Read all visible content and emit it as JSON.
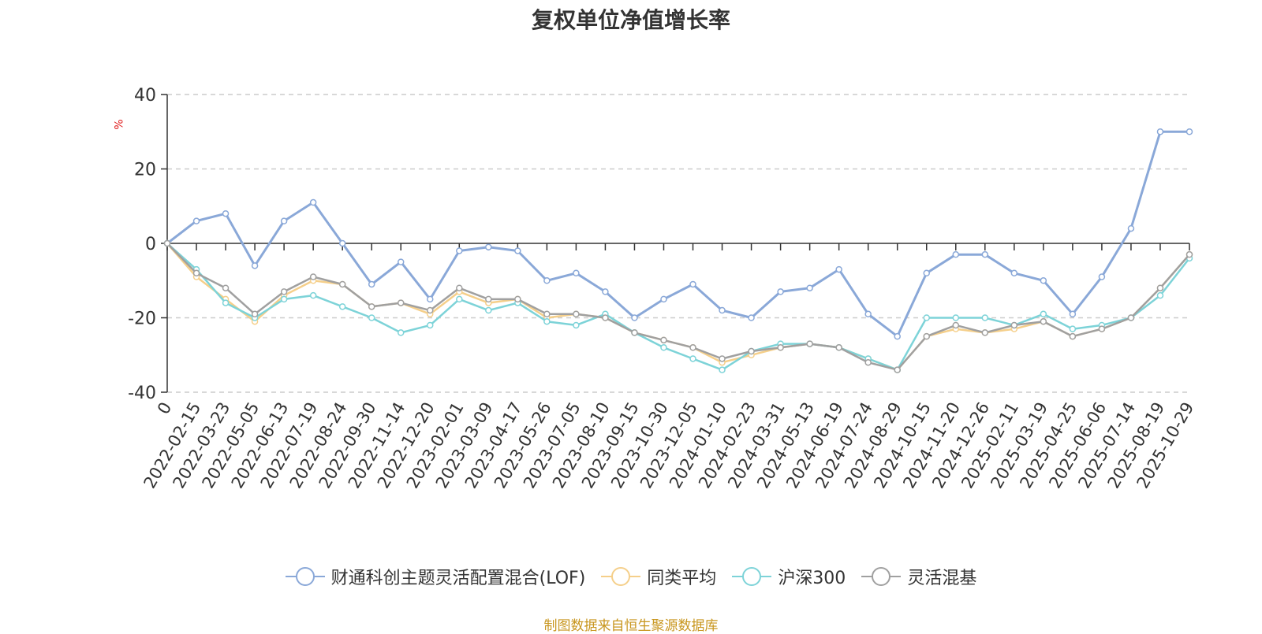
{
  "chart_data": {
    "type": "line",
    "title": "复权单位净值增长率",
    "ylabel": "%",
    "ylim": [
      -40,
      40
    ],
    "yticks": [
      -40,
      -20,
      0,
      20,
      40
    ],
    "grid": true,
    "legend_position": "bottom",
    "x_tick_labels": [
      "0",
      "2022-02-15",
      "2022-03-23",
      "2022-05-05",
      "2022-06-13",
      "2022-07-19",
      "2022-08-24",
      "2022-09-30",
      "2022-11-14",
      "2022-12-20",
      "2023-02-01",
      "2023-03-09",
      "2023-04-17",
      "2023-05-26",
      "2023-07-05",
      "2023-08-10",
      "2023-09-15",
      "2023-10-30",
      "2023-12-05",
      "2024-01-10",
      "2024-02-23",
      "2024-03-31",
      "2024-05-13",
      "2024-06-19",
      "2024-07-24",
      "2024-08-29",
      "2024-10-15",
      "2024-11-20",
      "2024-12-26",
      "2025-02-11",
      "2025-03-19",
      "2025-04-25",
      "2025-06-06",
      "2025-07-14",
      "2025-08-19",
      "2025-10-29"
    ],
    "x": [
      "0",
      "2022-02-15",
      "2022-03-23",
      "2022-05-05",
      "2022-06-13",
      "2022-07-19",
      "2022-08-24",
      "2022-09-30",
      "2022-11-14",
      "2022-12-20",
      "2023-02-01",
      "2023-03-09",
      "2023-04-17",
      "2023-05-26",
      "2023-07-05",
      "2023-08-10",
      "2023-09-15",
      "2023-10-30",
      "2023-12-05",
      "2024-01-10",
      "2024-02-23",
      "2024-03-31",
      "2024-05-13",
      "2024-06-19",
      "2024-07-24",
      "2024-08-29",
      "2024-10-15",
      "2024-11-20",
      "2024-12-26",
      "2025-02-11",
      "2025-03-19",
      "2025-04-25",
      "2025-06-06",
      "2025-07-14",
      "2025-08-19",
      "2025-10-29"
    ],
    "series": [
      {
        "name": "财通科创主题灵活配置混合(LOF)",
        "color": "#8aa8d8",
        "values": [
          0,
          6,
          8,
          -6,
          6,
          11,
          0,
          -11,
          -5,
          -15,
          -2,
          -1,
          -2,
          -10,
          -8,
          -13,
          -20,
          -15,
          -11,
          -18,
          -20,
          -13,
          -12,
          -7,
          -19,
          -25,
          -8,
          -3,
          -3,
          -8,
          -10,
          -19,
          -9,
          4,
          30,
          30
        ]
      },
      {
        "name": "同类平均",
        "color": "#f5cf8a",
        "values": [
          0,
          -9,
          -15,
          -21,
          -14,
          -10,
          -11,
          -17,
          -16,
          -19,
          -13,
          -16,
          -15,
          -20,
          -19,
          -20,
          -24,
          -26,
          -28,
          -32,
          -30,
          -28,
          -27,
          -28,
          -31,
          -34,
          -25,
          -23,
          -24,
          -23,
          -21,
          -25,
          -23,
          -20,
          -12,
          -3
        ]
      },
      {
        "name": "沪深300",
        "color": "#7dd3d8",
        "values": [
          0,
          -7,
          -16,
          -20,
          -15,
          -14,
          -17,
          -20,
          -24,
          -22,
          -15,
          -18,
          -16,
          -21,
          -22,
          -19,
          -24,
          -28,
          -31,
          -34,
          -29,
          -27,
          -27,
          -28,
          -31,
          -34,
          -20,
          -20,
          -20,
          -22,
          -19,
          -23,
          -22,
          -20,
          -14,
          -4
        ]
      },
      {
        "name": "灵活混基",
        "color": "#a0a0a0",
        "values": [
          0,
          -8,
          -12,
          -19,
          -13,
          -9,
          -11,
          -17,
          -16,
          -18,
          -12,
          -15,
          -15,
          -19,
          -19,
          -20,
          -24,
          -26,
          -28,
          -31,
          -29,
          -28,
          -27,
          -28,
          -32,
          -34,
          -25,
          -22,
          -24,
          -22,
          -21,
          -25,
          -23,
          -20,
          -12,
          -3
        ]
      }
    ]
  },
  "source_note": "制图数据来自恒生聚源数据库"
}
